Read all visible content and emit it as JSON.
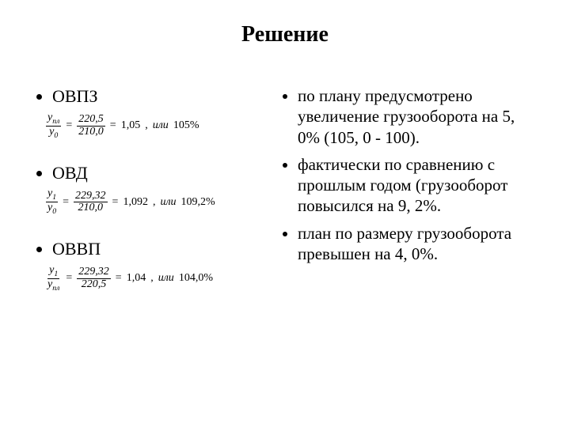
{
  "title": "Решение",
  "left": {
    "items": [
      {
        "label": "ОВПЗ",
        "frac_num_sym": "y",
        "frac_num_sub": "пл",
        "frac_den_sym": "y",
        "frac_den_sub": "0",
        "num_val": "220,5",
        "den_val": "210,0",
        "ratio": "1,05",
        "or_word": "или",
        "percent": "105%"
      },
      {
        "label": "ОВД",
        "frac_num_sym": "y",
        "frac_num_sub": "1",
        "frac_den_sym": "y",
        "frac_den_sub": "0",
        "num_val": "229,32",
        "den_val": "210,0",
        "ratio": "1,092",
        "or_word": "или",
        "percent": "109,2%"
      },
      {
        "label": "ОВВП",
        "frac_num_sym": "y",
        "frac_num_sub": "1",
        "frac_den_sym": "y",
        "frac_den_sub": "пл",
        "num_val": "229,32",
        "den_val": "220,5",
        "ratio": "1,04",
        "or_word": "или",
        "percent": "104,0%"
      }
    ]
  },
  "right": {
    "bullets": [
      "по плану предусмотрено увеличение   грузооборота на 5, 0% (105, 0 - 100).",
      "фактически по сравнению с прошлым годом (грузооборот повысился на 9, 2%.",
      "план по размеру грузооборота превышен на 4, 0%."
    ]
  },
  "style": {
    "background": "#ffffff",
    "text_color": "#000000",
    "title_fontsize": 28,
    "body_fontsize": 22,
    "formula_fontsize": 14
  }
}
